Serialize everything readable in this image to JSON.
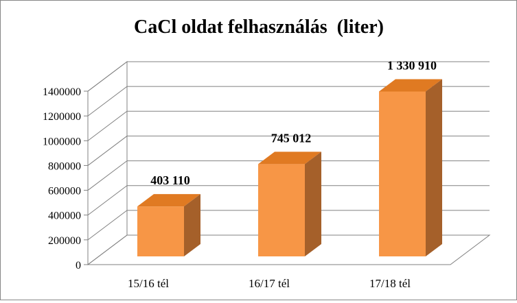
{
  "chart_data": {
    "type": "bar",
    "title": "CaCl oldat felhasználás  (liter)",
    "categories": [
      "15/16 tél",
      "16/17 tél",
      "17/18 tél"
    ],
    "values": [
      403110,
      745012,
      1330910
    ],
    "data_labels": [
      "403 110",
      "745 012",
      "1 330 910"
    ],
    "yticks": [
      "0",
      "200000",
      "400000",
      "600000",
      "800000",
      "1000000",
      "1200000",
      "1400000"
    ],
    "ylim": [
      0,
      1400000
    ],
    "grid": true,
    "legend": "none",
    "style": "3d-column",
    "colors": {
      "bar_front": "#F79646",
      "bar_top": "#E07A22",
      "bar_side": "#A5602A",
      "grid": "#808080",
      "frame": "#868686"
    }
  }
}
